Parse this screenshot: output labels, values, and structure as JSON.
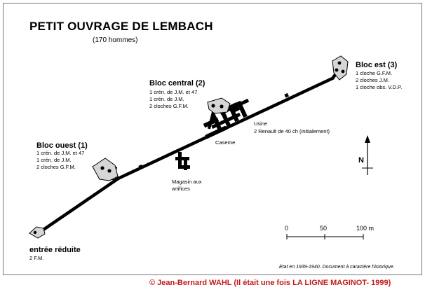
{
  "title": "PETIT OUVRAGE DE LEMBACH",
  "subtitle": "(170 hommes)",
  "blocks": {
    "est": {
      "name": "Bloc est (3)",
      "lines": [
        "1 cloche G.F.M.",
        "2 cloches J.M.",
        "1 cloche obs. V.D.P."
      ]
    },
    "central": {
      "name": "Bloc central (2)",
      "lines": [
        "1 crén. de J.M. et 47",
        "1 crén. de J.M.",
        "2 cloches G.F.M."
      ]
    },
    "ouest": {
      "name": "Bloc ouest (1)",
      "lines": [
        "1 crén. de J.M. et 47",
        "1 crén. de J.M.",
        "2 cloches G.F.M."
      ]
    },
    "entree": {
      "name": "entrée réduite",
      "lines": [
        "2 F.M."
      ]
    }
  },
  "labels": {
    "usine": "Usine",
    "usine_detail": "2 Renault de 40 ch (initialement)",
    "caserne": "Caserne",
    "magasin_line1": "Magasin aux",
    "magasin_line2": "artifices"
  },
  "north": "N",
  "scale_labels": [
    "0",
    "50",
    "100 m"
  ],
  "note": "Etat en 1939-1940. Document à caractère historique.",
  "copyright": "© Jean-Bernard WAHL (Il était une fois LA LIGNE MAGINOT- 1999)"
}
